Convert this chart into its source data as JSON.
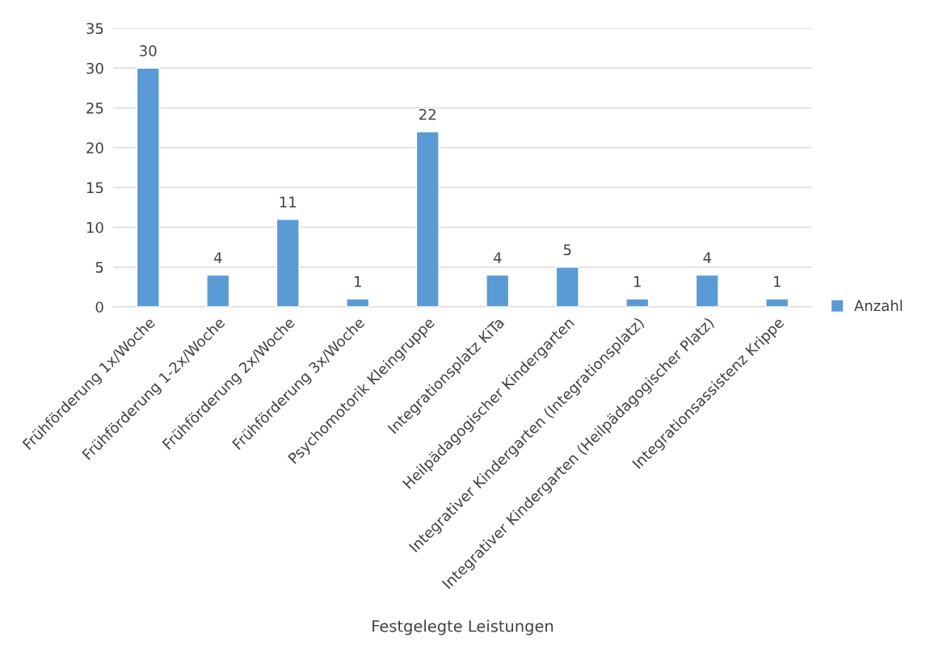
{
  "chart_data": {
    "type": "bar",
    "categories": [
      "Frühförderung 1x/Woche",
      "Frühförderung 1-2x/Woche",
      "Frühförderung 2x/Woche",
      "Frühförderung 3x/Woche",
      "Psychomotorik Kleingruppe",
      "Integrationsplatz KiTa",
      "Heilpädagogischer Kindergarten",
      "Integrativer Kindergarten (Integrationsplatz)",
      "Integrativer Kindergarten (Heilpädagogischer Platz)",
      "Integrationsassistenz Krippe"
    ],
    "series": [
      {
        "name": "Anzahl",
        "color": "#5b9bd5",
        "values": [
          30,
          4,
          11,
          1,
          22,
          4,
          5,
          1,
          4,
          1
        ]
      }
    ],
    "xlabel": "Festgelegte Leistungen",
    "ylim": [
      0,
      35
    ],
    "yticks": [
      0,
      5,
      10,
      15,
      20,
      25,
      30,
      35
    ],
    "grid": "y",
    "legend": "right",
    "data_labels": true
  }
}
